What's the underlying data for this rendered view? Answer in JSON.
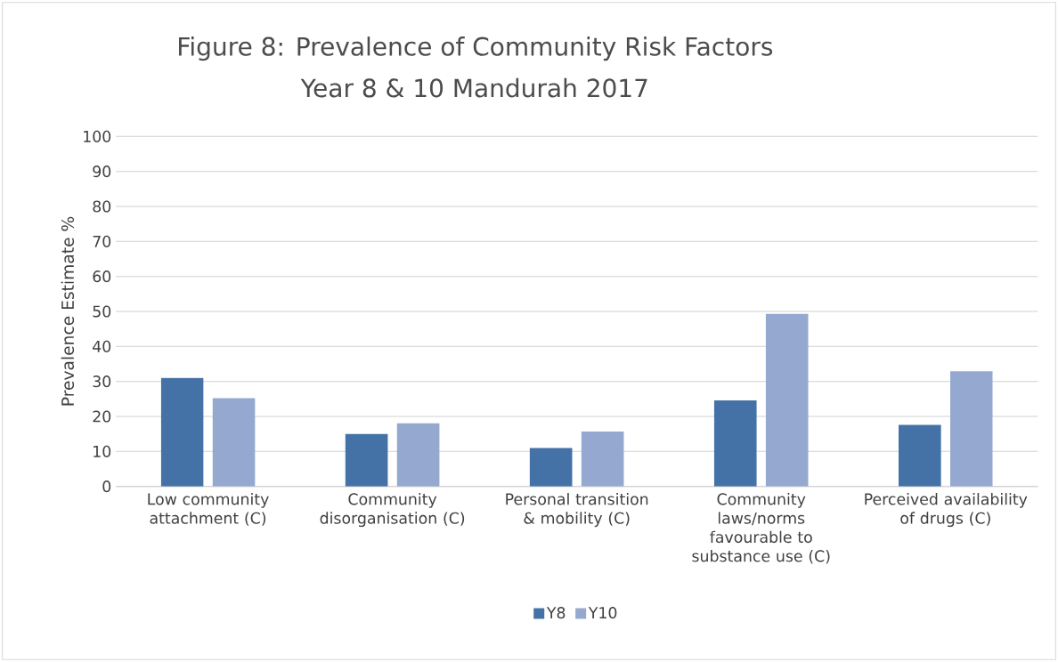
{
  "chart_data": {
    "type": "bar",
    "title": "Figure 8: Prevalence of Community Risk Factors",
    "subtitle": "Year 8 & 10 Mandurah 2017",
    "ylabel": "Prevalence Estimate %",
    "categories": [
      "Low community attachment (C)",
      "Community disorganisation (C)",
      "Personal transition & mobility (C)",
      "Community laws/norms favourable to substance use (C)",
      "Perceived availability of drugs (C)"
    ],
    "series": [
      {
        "name": "Y8",
        "color": "#4472a6",
        "values": [
          31.0,
          15.0,
          11.0,
          24.6,
          17.6
        ]
      },
      {
        "name": "Y10",
        "color": "#95a9d0",
        "values": [
          25.2,
          18.0,
          15.7,
          49.3,
          32.9
        ]
      }
    ],
    "ylim": [
      0,
      100
    ],
    "yticks": [
      0,
      10,
      20,
      30,
      40,
      50,
      60,
      70,
      80,
      90,
      100
    ],
    "grid": "y",
    "legend": "bottom"
  }
}
